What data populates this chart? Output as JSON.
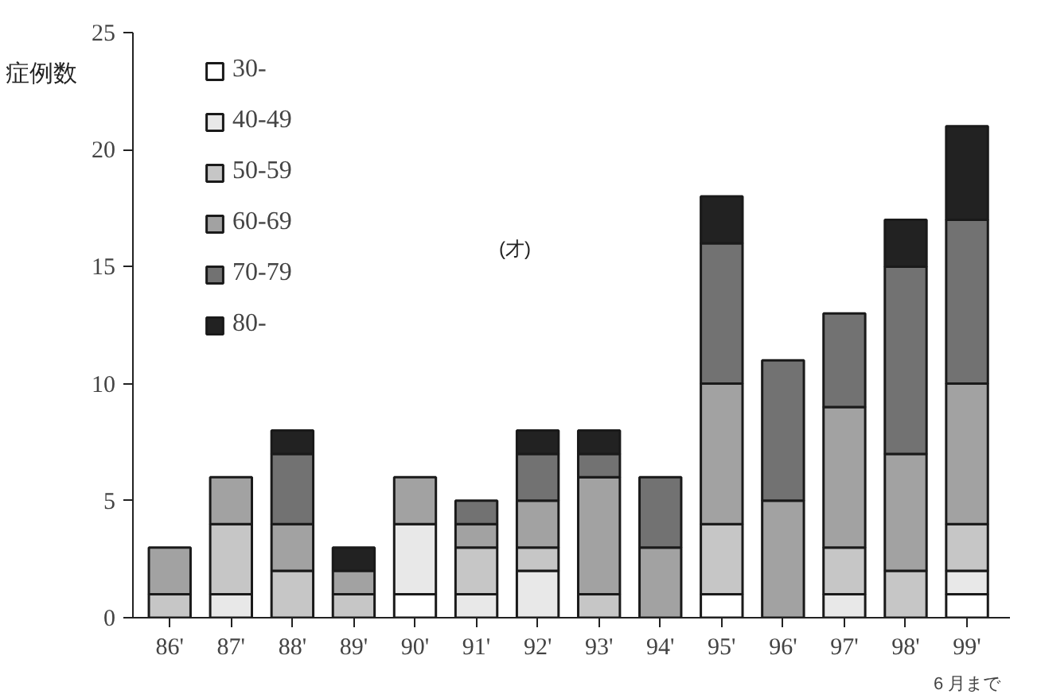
{
  "chart_data": {
    "type": "bar",
    "stacked": true,
    "ylabel": "症例数",
    "categories": [
      "86'",
      "87'",
      "88'",
      "89'",
      "90'",
      "91'",
      "92'",
      "93'",
      "94'",
      "95'",
      "96'",
      "97'",
      "98'",
      "99'"
    ],
    "series": [
      {
        "name": "30-",
        "color": "#ffffff",
        "values": [
          0,
          0,
          0,
          0,
          1,
          0,
          0,
          0,
          0,
          1,
          0,
          0,
          0,
          1
        ]
      },
      {
        "name": "40-49",
        "color": "#e8e8e8",
        "values": [
          0,
          1,
          0,
          0,
          3,
          1,
          2,
          0,
          0,
          0,
          0,
          1,
          0,
          1
        ]
      },
      {
        "name": "50-59",
        "color": "#c6c6c6",
        "values": [
          1,
          3,
          2,
          1,
          0,
          2,
          1,
          1,
          0,
          3,
          0,
          2,
          2,
          2
        ]
      },
      {
        "name": "60-69",
        "color": "#a2a2a2",
        "values": [
          2,
          2,
          2,
          1,
          2,
          1,
          2,
          5,
          3,
          6,
          5,
          6,
          5,
          6
        ]
      },
      {
        "name": "70-79",
        "color": "#727272",
        "values": [
          0,
          0,
          3,
          0,
          0,
          1,
          2,
          1,
          3,
          6,
          6,
          4,
          8,
          7
        ]
      },
      {
        "name": "80-",
        "color": "#222222",
        "values": [
          0,
          0,
          1,
          1,
          0,
          0,
          1,
          1,
          0,
          2,
          0,
          0,
          2,
          4
        ]
      }
    ],
    "ylim": [
      0,
      25
    ],
    "yticks": [
      0,
      5,
      10,
      15,
      20,
      25
    ],
    "grid": false,
    "legend": "top left",
    "annotations": [
      "(才)",
      "6 月まで"
    ]
  }
}
